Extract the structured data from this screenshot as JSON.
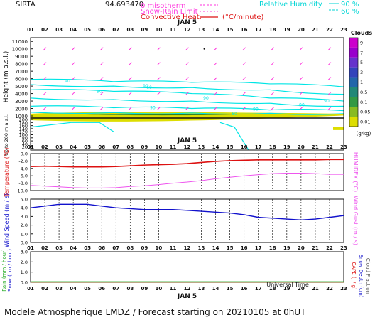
{
  "header": {
    "station": "SIRTA",
    "coords": "94.693470",
    "legend_isotherm": "0 misotherm",
    "legend_snow": "Snow-Rain Limit",
    "legend_convective": "Convective Heat.",
    "legend_convective_unit": "(°C/minute)",
    "legend_rh": "Relative Humidity",
    "legend_rh_v1": "90 %",
    "legend_rh_v2": "60 %"
  },
  "axis": {
    "hours": [
      "01",
      "02",
      "03",
      "04",
      "05",
      "06",
      "07",
      "08",
      "09",
      "10",
      "11",
      "12",
      "13",
      "14",
      "15",
      "16",
      "17",
      "18",
      "19",
      "20",
      "21",
      "22",
      "23"
    ],
    "date_label": "JAN  5",
    "xlabel_bottom": "Universal Time"
  },
  "footer": "Modele Atmospherique LMDZ / Forecast starting on 20210105 at 0hUT",
  "colors": {
    "temperature": "#dd1111",
    "humidex": "#ee55ee",
    "wind": "#1111cc",
    "rh": "#00e5e5",
    "wind_barbs": "#ff33dd",
    "cloud_dark": "#227722",
    "cloud_light": "#dddd00"
  },
  "chart_data": [
    {
      "type": "heatmap",
      "title": "Clouds",
      "ylabel": "Height (m a.s.l.)",
      "ylabel_low": "Up to 200 m a.s.l.",
      "yticks_upper": [
        1000,
        2000,
        3000,
        4000,
        5000,
        6000,
        7000,
        8000,
        9000,
        10000,
        11000
      ],
      "yticks_lower": [
        20,
        40,
        60,
        80,
        100,
        120,
        140,
        160,
        180,
        200
      ],
      "ylim_upper": [
        1000,
        11500
      ],
      "colorbar_label": "(g/kg)",
      "colorbar_ticks": [
        "9",
        "7",
        "5",
        "3",
        "1",
        "0.5",
        "0.1",
        "0.05",
        "0.01"
      ],
      "colorbar_colors": [
        "#cc00cc",
        "#9900cc",
        "#6633cc",
        "#3344bb",
        "#2266aa",
        "#228877",
        "#339944",
        "#88bb22",
        "#dddd00"
      ],
      "rh_contour_labels": [
        "90",
        "90",
        "90",
        "90",
        "90",
        "90",
        "90",
        "90",
        "60",
        "60"
      ],
      "cloud_layer_m": [
        1000,
        1300
      ]
    },
    {
      "type": "line",
      "ylabel": "Temperature (°C)",
      "ylabel_right": "HUMIDEX (°C)",
      "yticks": [
        0.0,
        -2.0,
        -4.0,
        -6.0,
        -8.0,
        -10.0
      ],
      "ylim": [
        -10,
        0
      ],
      "x": [
        1,
        2,
        3,
        4,
        5,
        6,
        7,
        8,
        9,
        10,
        11,
        12,
        13,
        14,
        15,
        16,
        17,
        18,
        19,
        20,
        21,
        22,
        23
      ],
      "series": [
        {
          "name": "Temperature",
          "values": [
            -3.5,
            -3.4,
            -3.5,
            -3.6,
            -3.6,
            -3.6,
            -3.5,
            -3.3,
            -3.1,
            -3.0,
            -2.9,
            -2.7,
            -2.4,
            -2.1,
            -1.9,
            -1.8,
            -1.7,
            -1.7,
            -1.7,
            -1.7,
            -1.7,
            -1.6,
            -1.6
          ]
        },
        {
          "name": "HUMIDEX",
          "values": [
            -8.6,
            -8.8,
            -9.0,
            -9.2,
            -9.3,
            -9.3,
            -9.2,
            -8.9,
            -8.7,
            -8.4,
            -8.0,
            -7.7,
            -7.3,
            -6.8,
            -6.4,
            -6.0,
            -5.7,
            -5.4,
            -5.3,
            -5.3,
            -5.4,
            -5.6,
            -5.6
          ]
        }
      ]
    },
    {
      "type": "line",
      "ylabel": "Wind Speed (m / s)",
      "ylabel_right": "Wind Gust (m / s)",
      "yticks": [
        0.0,
        1.0,
        2.0,
        3.0,
        4.0,
        5.0
      ],
      "ylim": [
        0,
        5
      ],
      "x": [
        1,
        2,
        3,
        4,
        5,
        6,
        7,
        8,
        9,
        10,
        11,
        12,
        13,
        14,
        15,
        16,
        17,
        18,
        19,
        20,
        21,
        22,
        23
      ],
      "series": [
        {
          "name": "Wind Speed",
          "values": [
            4.0,
            4.2,
            4.4,
            4.4,
            4.4,
            4.2,
            4.0,
            3.9,
            3.8,
            3.8,
            3.8,
            3.7,
            3.6,
            3.5,
            3.4,
            3.2,
            2.9,
            2.8,
            2.7,
            2.6,
            2.7,
            2.9,
            3.1
          ]
        }
      ]
    },
    {
      "type": "line",
      "ylabel": "Rain (mm / hour)",
      "ylabel_b": "Snow (cm / hour)",
      "ylabel_right": "CAPE (J / g)",
      "ylabel_right_b": "Snow Depth (cm)",
      "ylabel_right_c": "Cloud Fraction",
      "yticks": [
        0.0,
        1.0,
        2.0,
        3.0
      ],
      "ylim": [
        0,
        3
      ],
      "x": [
        1,
        2,
        3,
        4,
        5,
        6,
        7,
        8,
        9,
        10,
        11,
        12,
        13,
        14,
        15,
        16,
        17,
        18,
        19,
        20,
        21,
        22,
        23
      ],
      "series": [
        {
          "name": "Rain",
          "values": [
            0.05,
            0.05,
            0.05,
            0.05,
            0.05,
            0.05,
            0.05,
            0.05,
            0.05,
            0.05,
            0.05,
            0.05,
            0.05,
            0.05,
            0.05,
            0.05,
            0.05,
            0.05,
            0.05,
            0.05,
            0.05,
            0.05,
            0.05
          ]
        }
      ]
    }
  ]
}
